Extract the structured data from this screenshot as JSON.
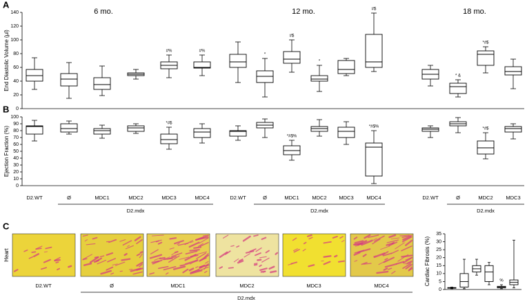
{
  "chart_data": [
    {
      "type": "box",
      "panel": "A",
      "ylabel": "End Diastolic Volume (µl)",
      "group_titles": [
        "6 mo.",
        "12 mo.",
        "18 mo."
      ],
      "min": [
        28,
        15,
        19,
        43,
        45,
        48,
        38,
        17,
        53,
        25,
        48,
        54,
        33,
        17,
        52,
        29
      ],
      "q1": [
        40,
        33,
        28,
        48,
        58,
        59,
        60,
        38,
        66,
        40,
        51,
        60,
        43,
        22,
        63,
        49
      ],
      "median": [
        48,
        43,
        35,
        50,
        63,
        60,
        68,
        47,
        72,
        43,
        57,
        68,
        50,
        32,
        79,
        54
      ],
      "q3": [
        57,
        51,
        45,
        52,
        68,
        68,
        79,
        55,
        83,
        48,
        70,
        108,
        57,
        37,
        84,
        61
      ],
      "max": [
        74,
        67,
        62,
        57,
        78,
        78,
        97,
        73,
        100,
        63,
        73,
        139,
        63,
        42,
        90,
        72
      ],
      "annotations": [
        null,
        null,
        null,
        null,
        "#%",
        "#%",
        null,
        "*",
        "#$",
        "*",
        null,
        "#$",
        null,
        "* &",
        "*#$",
        null
      ],
      "color": "#000000",
      "ylim": [
        0,
        140
      ],
      "yticks": [
        0,
        20,
        40,
        60,
        80,
        100,
        120,
        140
      ]
    },
    {
      "type": "box",
      "panel": "B",
      "ylabel": "Ejection Fraction (%)",
      "categories": [
        "D2.WT",
        "Ø",
        "MDC1",
        "MDC2",
        "MDC3",
        "MDC4",
        "D2.WT",
        "Ø",
        "MDC1",
        "MDC2",
        "MDC3",
        "MDC4",
        "D2.WT",
        "Ø",
        "MDC2",
        "MDC3"
      ],
      "group_labels": [
        "D2.mdx",
        "D2.mdx",
        "D2.mdx"
      ],
      "min": [
        65,
        75,
        69,
        76,
        53,
        62,
        66,
        70,
        37,
        72,
        60,
        3,
        70,
        77,
        39,
        68
      ],
      "q1": [
        75,
        78,
        75,
        79,
        61,
        70,
        72,
        84,
        45,
        79,
        70,
        14,
        79,
        87,
        46,
        78
      ],
      "median": [
        86,
        83,
        80,
        84,
        67,
        78,
        79,
        88,
        51,
        83,
        79,
        56,
        82,
        90,
        55,
        83
      ],
      "q3": [
        87,
        90,
        83,
        87,
        75,
        83,
        80,
        92,
        58,
        86,
        85,
        62,
        84,
        93,
        65,
        86
      ],
      "max": [
        95,
        94,
        88,
        90,
        85,
        90,
        87,
        97,
        66,
        96,
        93,
        80,
        87,
        99,
        77,
        90
      ],
      "annotations": [
        null,
        null,
        null,
        null,
        "*#$",
        null,
        null,
        null,
        "*#$%",
        null,
        null,
        "*#$%",
        null,
        null,
        "*#$",
        null
      ],
      "color": "#000000",
      "ylim": [
        0,
        100
      ],
      "yticks": [
        0,
        10,
        20,
        30,
        40,
        50,
        60,
        70,
        80,
        90,
        100
      ]
    },
    {
      "type": "box",
      "ylabel": "Cardiac Fibrosis (%)",
      "min": [
        0.5,
        0.5,
        9,
        3,
        0.5,
        1
      ],
      "q1": [
        0.8,
        1.5,
        11,
        5,
        1,
        3
      ],
      "median": [
        1,
        5,
        13,
        11,
        1.5,
        4.5
      ],
      "q3": [
        1.2,
        10,
        15,
        15,
        2,
        6
      ],
      "max": [
        1.5,
        19,
        19,
        17,
        3,
        31
      ],
      "annotations": [
        null,
        null,
        null,
        null,
        "%",
        null
      ],
      "color": "#000000",
      "ylim": [
        0,
        35
      ],
      "yticks": [
        0,
        5,
        10,
        15,
        20,
        25,
        30,
        35
      ]
    }
  ],
  "histology": {
    "panel": "C",
    "row_label": "Heart",
    "labels": [
      "D2.WT",
      "Ø",
      "MDC1",
      "MDC2",
      "MDC3",
      "MDC4"
    ],
    "group_label": "D2.mdx"
  }
}
